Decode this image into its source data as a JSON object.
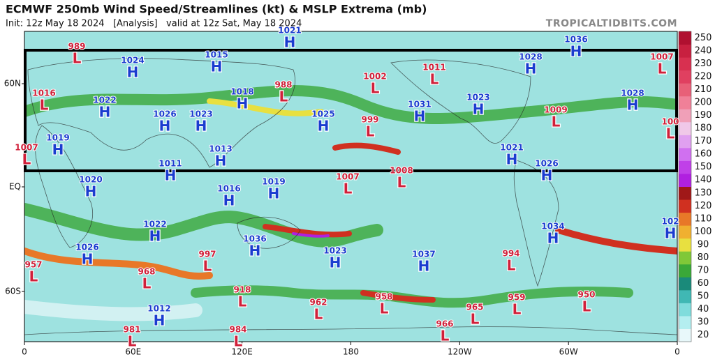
{
  "header": {
    "title": "ECMWF 250mb Wind Speed/Streamlines (kt) & MSLP Extrema (mb)",
    "subtitle": "Init: 12z May 18 2024   [Analysis]   valid at 12z Sat, May 18 2024",
    "site": "TROPICALTIDBITS.COM"
  },
  "lat_labels": [
    "60N",
    "EQ",
    "60S"
  ],
  "lon_labels": [
    "0",
    "60E",
    "120E",
    "180",
    "120W",
    "60W",
    "0"
  ],
  "colorbar": {
    "ticks": [
      20,
      30,
      40,
      50,
      60,
      70,
      80,
      90,
      100,
      110,
      120,
      130,
      140,
      150,
      160,
      170,
      180,
      190,
      200,
      210,
      220,
      230,
      240,
      250
    ],
    "colors": [
      "#e8f8fa",
      "#b4eef0",
      "#80dcdc",
      "#40b8b4",
      "#1a8a7a",
      "#3aa838",
      "#80c838",
      "#e8e040",
      "#f0b030",
      "#e87828",
      "#d03020",
      "#a01818",
      "#b020e0",
      "#c040e8",
      "#d070f0",
      "#e0a0f0",
      "#f0c8e8",
      "#f0a0b8",
      "#f08098",
      "#e86078",
      "#e04060",
      "#d83050",
      "#c82040",
      "#b01030"
    ]
  },
  "high_color": "#1a3ccf",
  "low_color": "#d0203a",
  "centers": [
    {
      "type": "L",
      "value": 989
    },
    {
      "type": "H",
      "value": 1021
    },
    {
      "type": "H",
      "value": 1024
    },
    {
      "type": "H",
      "value": 1015
    },
    {
      "type": "H",
      "value": 1036
    },
    {
      "type": "H",
      "value": 1028
    },
    {
      "type": "L",
      "value": 1007
    },
    {
      "type": "L",
      "value": 1016
    },
    {
      "type": "H",
      "value": 1022
    },
    {
      "type": "H",
      "value": 1018
    },
    {
      "type": "L",
      "value": 988
    },
    {
      "type": "L",
      "value": 1002
    },
    {
      "type": "L",
      "value": 1011
    },
    {
      "type": "H",
      "value": 1023
    },
    {
      "type": "H",
      "value": 1028
    },
    {
      "type": "H",
      "value": 1026
    },
    {
      "type": "H",
      "value": 1023
    },
    {
      "type": "H",
      "value": 1025
    },
    {
      "type": "H",
      "value": 1031
    },
    {
      "type": "L",
      "value": 999
    },
    {
      "type": "L",
      "value": 1009
    },
    {
      "type": "L",
      "value": 100
    },
    {
      "type": "L",
      "value": 1007
    },
    {
      "type": "H",
      "value": 1019
    },
    {
      "type": "H",
      "value": 1013
    },
    {
      "type": "H",
      "value": 1011
    },
    {
      "type": "H",
      "value": 1021
    },
    {
      "type": "H",
      "value": 1026
    },
    {
      "type": "L",
      "value": 1007
    },
    {
      "type": "L",
      "value": 1008
    },
    {
      "type": "H",
      "value": 1020
    },
    {
      "type": "H",
      "value": 1016
    },
    {
      "type": "H",
      "value": 1019
    },
    {
      "type": "H",
      "value": 1022
    },
    {
      "type": "H",
      "value": 1034
    },
    {
      "type": "H",
      "value": 102
    },
    {
      "type": "H",
      "value": 1026
    },
    {
      "type": "H",
      "value": 1036
    },
    {
      "type": "L",
      "value": 997
    },
    {
      "type": "H",
      "value": 1023
    },
    {
      "type": "H",
      "value": 1037
    },
    {
      "type": "L",
      "value": 994
    },
    {
      "type": "L",
      "value": 957
    },
    {
      "type": "L",
      "value": 968
    },
    {
      "type": "L",
      "value": 918
    },
    {
      "type": "L",
      "value": 962
    },
    {
      "type": "L",
      "value": 958
    },
    {
      "type": "L",
      "value": 965
    },
    {
      "type": "L",
      "value": 959
    },
    {
      "type": "L",
      "value": 950
    },
    {
      "type": "H",
      "value": 1012
    },
    {
      "type": "L",
      "value": 966
    },
    {
      "type": "L",
      "value": 981
    },
    {
      "type": "L",
      "value": 984
    }
  ]
}
